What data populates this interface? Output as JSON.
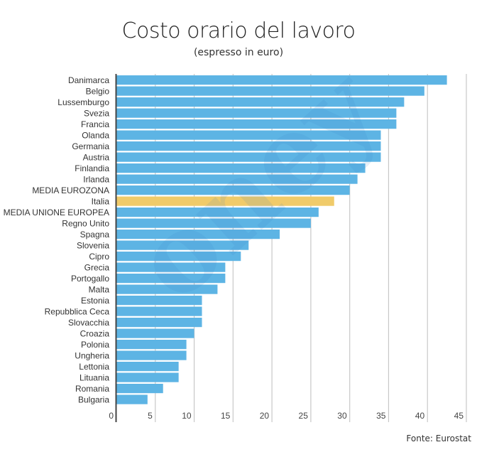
{
  "colors": {
    "bar": "#5DB4E4",
    "highlight": "#F0CB6A",
    "grid": "#c8c8c8",
    "axis": "#444444",
    "watermark_blue": "#3b7fc4",
    "watermark_green": "#7cc576"
  },
  "watermark": {
    "text": "Money.it"
  },
  "source": "Fonte: Eurostat",
  "chart_data": {
    "type": "bar",
    "orientation": "horizontal",
    "title": "Costo orario del lavoro",
    "subtitle": "(espresso in euro)",
    "xlabel": "",
    "ylabel": "",
    "xlim": [
      0,
      45
    ],
    "grid": true,
    "ticks": [
      "0",
      "5",
      "10",
      "15",
      "20",
      "25",
      "30",
      "35",
      "40",
      "45"
    ],
    "tick_values": [
      0,
      5,
      10,
      15,
      20,
      25,
      30,
      35,
      40,
      45
    ],
    "highlight": "Italia",
    "categories": [
      "Danimarca",
      "Belgio",
      "Lussemburgo",
      "Svezia",
      "Francia",
      "Olanda",
      "Germania",
      "Austria",
      "Finlandia",
      "Irlanda",
      "MEDIA EUROZONA",
      "Italia",
      "MEDIA UNIONE EUROPEA",
      "Regno Unito",
      "Spagna",
      "Slovenia",
      "Cipro",
      "Grecia",
      "Portogallo",
      "Malta",
      "Estonia",
      "Repubblica Ceca",
      "Slovacchia",
      "Croazia",
      "Polonia",
      "Ungheria",
      "Lettonia",
      "Lituania",
      "Romania",
      "Bulgaria"
    ],
    "values": [
      42.5,
      39.6,
      37.0,
      36.0,
      36.0,
      34.0,
      34.0,
      34.0,
      32.0,
      31.0,
      30.0,
      28.0,
      26.0,
      25.0,
      21.0,
      17.0,
      16.0,
      14.0,
      14.0,
      13.0,
      11.0,
      11.0,
      11.0,
      10.0,
      9.0,
      9.0,
      8.0,
      8.0,
      6.0,
      4.0
    ]
  }
}
